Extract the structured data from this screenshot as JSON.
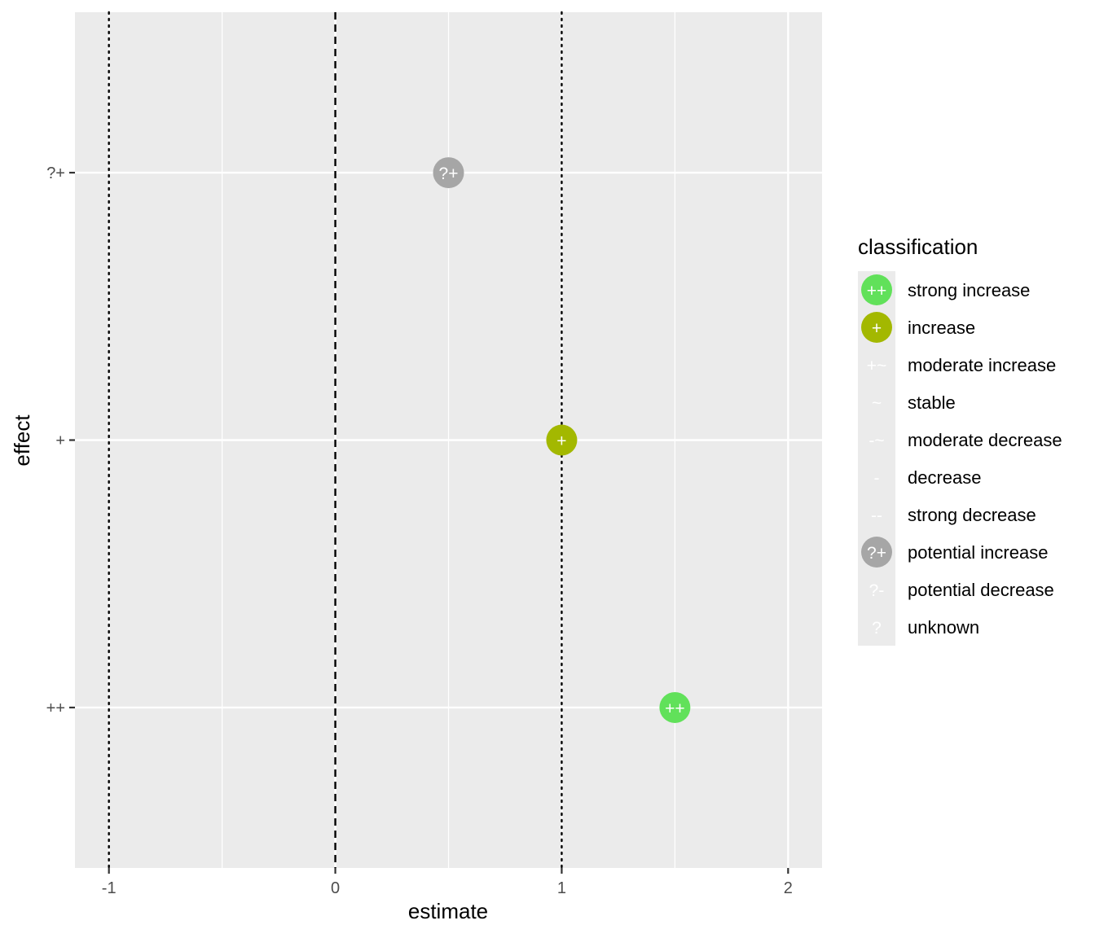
{
  "chart_data": {
    "type": "scatter",
    "xlabel": "estimate",
    "ylabel": "effect",
    "xlim": [
      -1.15,
      2.15
    ],
    "x_ticks": [
      -1,
      0,
      1,
      2
    ],
    "x_tick_labels": [
      "-1",
      "0",
      "1",
      "2"
    ],
    "x_minor_gridlines": [
      -0.5,
      0.5,
      1.5
    ],
    "categories": [
      "++",
      "+",
      "?+"
    ],
    "reference_lines": [
      {
        "x": -1,
        "style": "dotted"
      },
      {
        "x": 0,
        "style": "dashed"
      },
      {
        "x": 1,
        "style": "dotted"
      }
    ],
    "points": [
      {
        "effect": "?+",
        "estimate": 0.5,
        "label": "?+",
        "classification": "potential increase"
      },
      {
        "effect": "+",
        "estimate": 1.0,
        "label": "+",
        "classification": "increase"
      },
      {
        "effect": "++",
        "estimate": 1.5,
        "label": "++",
        "classification": "strong increase"
      }
    ],
    "legend": {
      "title": "classification",
      "position": "right",
      "items": [
        {
          "label": "strong increase",
          "symbol": "++",
          "color": "#61e15a"
        },
        {
          "label": "increase",
          "symbol": "+",
          "color": "#a3b800"
        },
        {
          "label": "moderate increase",
          "symbol": "+~",
          "color": null
        },
        {
          "label": "stable",
          "symbol": "~",
          "color": null
        },
        {
          "label": "moderate decrease",
          "symbol": "-~",
          "color": null
        },
        {
          "label": "decrease",
          "symbol": "-",
          "color": null
        },
        {
          "label": "strong decrease",
          "symbol": "--",
          "color": null
        },
        {
          "label": "potential increase",
          "symbol": "?+",
          "color": "#a6a6a6"
        },
        {
          "label": "potential decrease",
          "symbol": "?-",
          "color": null
        },
        {
          "label": "unknown",
          "symbol": "?",
          "color": null
        }
      ]
    },
    "panel_background": "#ebebeb",
    "gridline_color": "#ffffff",
    "grid": true
  }
}
